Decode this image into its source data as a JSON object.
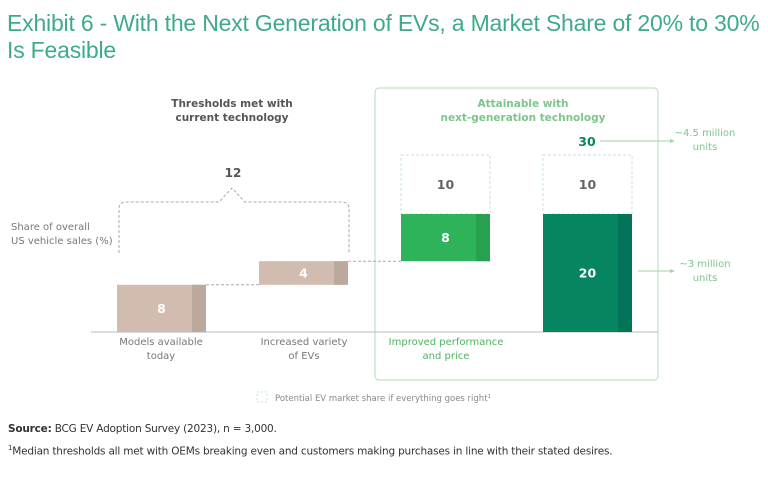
{
  "title": "Exhibit 6 - With the Next Generation of EVs, a Market Share of 20% to 30% Is Feasible",
  "chart_data": {
    "type": "bar",
    "subtype": "waterfall",
    "title": "Exhibit 6 - With the Next Generation of EVs, a Market Share of 20% to 30% Is Feasible",
    "ylabel": [
      "Share of overall",
      "US vehicle sales (%)"
    ],
    "group_labels": {
      "current": [
        "Thresholds met with",
        "current technology"
      ],
      "next_gen": [
        "Attainable with",
        "next-generation technology"
      ]
    },
    "categories": [
      {
        "label": [
          "Models available",
          "today"
        ],
        "group": "current"
      },
      {
        "label": [
          "Increased variety",
          "of EVs"
        ],
        "group": "current"
      },
      {
        "label": [
          "Improved performance",
          "and price"
        ],
        "group": "next_gen"
      },
      {
        "label": [
          "",
          ""
        ],
        "group": "next_gen"
      }
    ],
    "bars": [
      {
        "name": "models-available-today",
        "base": 0,
        "value": 8,
        "label": "8",
        "color": "#d2bcb0",
        "shade": "#bca89c"
      },
      {
        "name": "increased-variety",
        "base": 8,
        "value": 4,
        "label": "4",
        "color": "#d2bcb0",
        "shade": "#bca89c"
      },
      {
        "name": "improved-performance",
        "base": 12,
        "value": 8,
        "label": "8",
        "color": "#2eb35a",
        "shade": "#27a050"
      },
      {
        "name": "total",
        "base": 0,
        "value": 20,
        "label": "20",
        "color": "#068561",
        "shade": "#047458"
      }
    ],
    "potential": [
      {
        "bar_index": 2,
        "base": 20,
        "value": 10,
        "label": "10"
      },
      {
        "bar_index": 3,
        "base": 20,
        "value": 10,
        "label": "10"
      }
    ],
    "bracket_total": {
      "value": 12,
      "label": "12",
      "spans": [
        0,
        1
      ]
    },
    "total_potential": {
      "value": 30,
      "label": "30"
    },
    "annotations": [
      {
        "text": [
          "~4.5 million",
          "units"
        ],
        "points_to": 30
      },
      {
        "text": [
          "~3 million",
          "units"
        ],
        "points_to": 20
      }
    ],
    "legend": {
      "text": "Potential EV market share if everything goes right",
      "sup": "1",
      "position": "bottom-center"
    },
    "ylim": [
      0,
      30
    ],
    "grid": false
  },
  "colors": {
    "title": "#3eaa8c",
    "next_gen_text": "#6cc07a",
    "next_gen_box": "#bfe3c5",
    "dark_green_text": "#068561",
    "dashed": "#c5e4d3",
    "gray_text": "#666666"
  },
  "footer": {
    "source_label": "Source:",
    "source_text": " BCG EV Adoption Survey (2023), n = 3,000.",
    "footnote_sup": "1",
    "footnote_text": "Median thresholds all met with OEMs breaking even and customers making purchases in line with their stated desires."
  }
}
